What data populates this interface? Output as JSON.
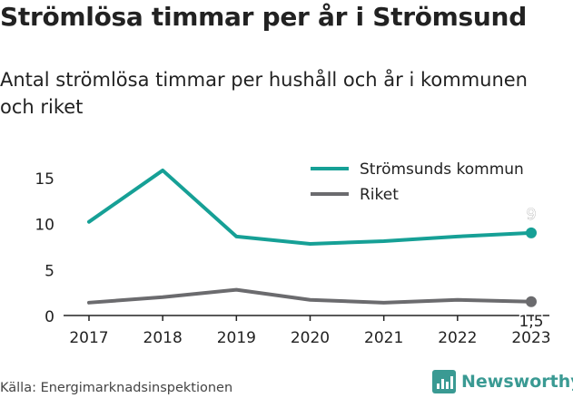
{
  "title": "Strömlösa timmar per år i Strömsund",
  "subtitle": "Antal strömlösa timmar per hushåll och år i kommunen och riket",
  "source": "Källa: Energimarknadsinspektionen",
  "logo_text": "Newsworthy",
  "chart_data": {
    "type": "line",
    "x": [
      "2017",
      "2018",
      "2019",
      "2020",
      "2021",
      "2022",
      "2023"
    ],
    "ylim": [
      0,
      17
    ],
    "yticks": [
      0,
      5,
      10,
      15
    ],
    "series": [
      {
        "name": "Strömsunds kommun",
        "color": "#16a096",
        "values": [
          10.2,
          15.8,
          8.6,
          7.8,
          8.1,
          8.6,
          9
        ],
        "end_label": "9"
      },
      {
        "name": "Riket",
        "color": "#6b6b6e",
        "values": [
          1.4,
          2.0,
          2.8,
          1.7,
          1.4,
          1.7,
          1.5
        ],
        "end_label": "1,5"
      }
    ],
    "legend": "top-right"
  }
}
